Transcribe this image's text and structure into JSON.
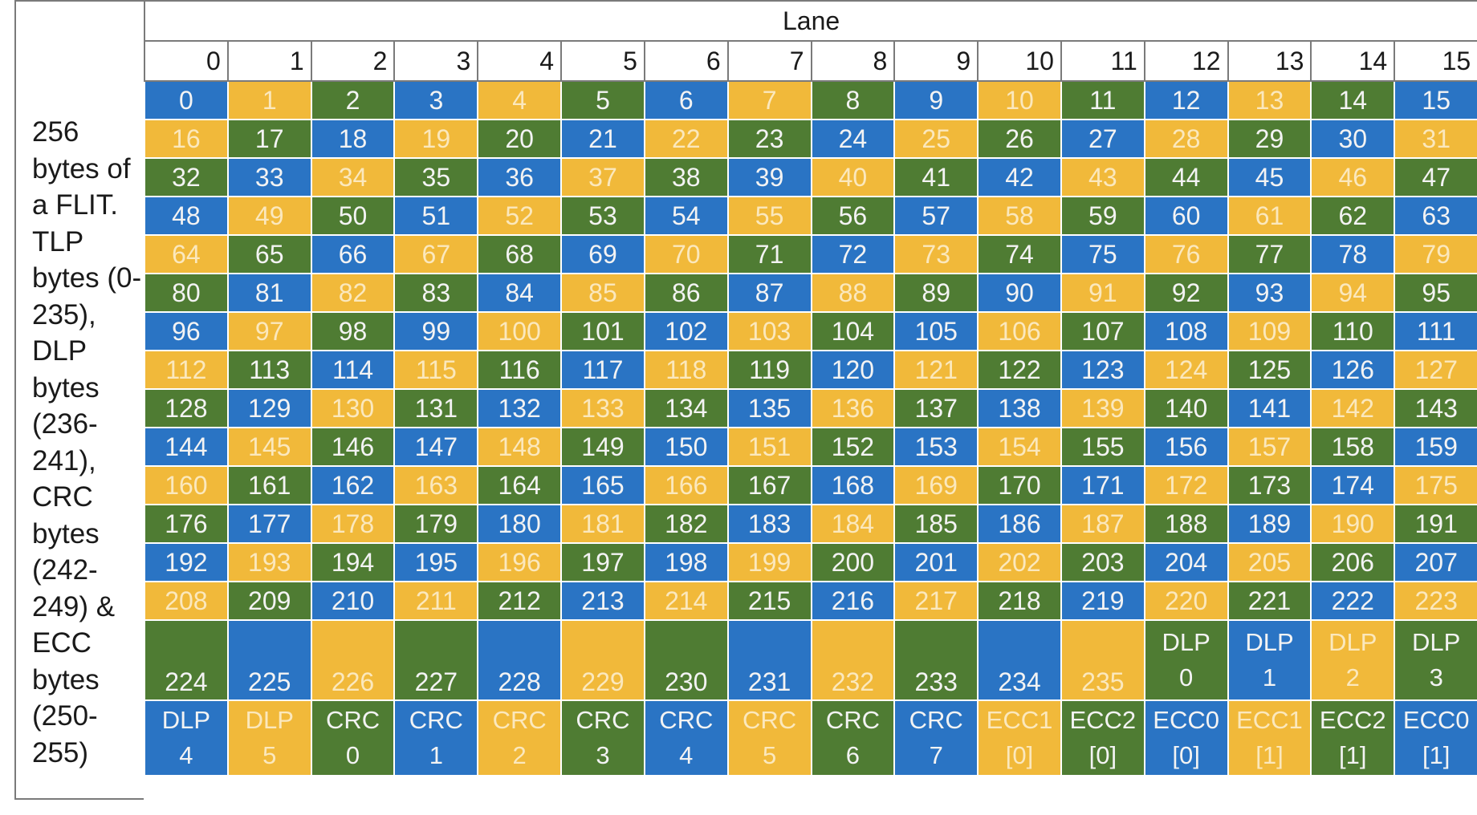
{
  "side_label": "256 bytes of a FLIT. TLP bytes (0-235), DLP bytes (236-241), CRC bytes (242-249) & ECC bytes (250-255)",
  "lane_header": "Lane",
  "lanes": [
    "0",
    "1",
    "2",
    "3",
    "4",
    "5",
    "6",
    "7",
    "8",
    "9",
    "10",
    "11",
    "12",
    "13",
    "14",
    "15"
  ],
  "colors": {
    "blue": "#2a74c4",
    "yellow": "#f1b93a",
    "green": "#4f7c33"
  },
  "rows": [
    [
      "0",
      "1",
      "2",
      "3",
      "4",
      "5",
      "6",
      "7",
      "8",
      "9",
      "10",
      "11",
      "12",
      "13",
      "14",
      "15"
    ],
    [
      "16",
      "17",
      "18",
      "19",
      "20",
      "21",
      "22",
      "23",
      "24",
      "25",
      "26",
      "27",
      "28",
      "29",
      "30",
      "31"
    ],
    [
      "32",
      "33",
      "34",
      "35",
      "36",
      "37",
      "38",
      "39",
      "40",
      "41",
      "42",
      "43",
      "44",
      "45",
      "46",
      "47"
    ],
    [
      "48",
      "49",
      "50",
      "51",
      "52",
      "53",
      "54",
      "55",
      "56",
      "57",
      "58",
      "59",
      "60",
      "61",
      "62",
      "63"
    ],
    [
      "64",
      "65",
      "66",
      "67",
      "68",
      "69",
      "70",
      "71",
      "72",
      "73",
      "74",
      "75",
      "76",
      "77",
      "78",
      "79"
    ],
    [
      "80",
      "81",
      "82",
      "83",
      "84",
      "85",
      "86",
      "87",
      "88",
      "89",
      "90",
      "91",
      "92",
      "93",
      "94",
      "95"
    ],
    [
      "96",
      "97",
      "98",
      "99",
      "100",
      "101",
      "102",
      "103",
      "104",
      "105",
      "106",
      "107",
      "108",
      "109",
      "110",
      "111"
    ],
    [
      "112",
      "113",
      "114",
      "115",
      "116",
      "117",
      "118",
      "119",
      "120",
      "121",
      "122",
      "123",
      "124",
      "125",
      "126",
      "127"
    ],
    [
      "128",
      "129",
      "130",
      "131",
      "132",
      "133",
      "134",
      "135",
      "136",
      "137",
      "138",
      "139",
      "140",
      "141",
      "142",
      "143"
    ],
    [
      "144",
      "145",
      "146",
      "147",
      "148",
      "149",
      "150",
      "151",
      "152",
      "153",
      "154",
      "155",
      "156",
      "157",
      "158",
      "159"
    ],
    [
      "160",
      "161",
      "162",
      "163",
      "164",
      "165",
      "166",
      "167",
      "168",
      "169",
      "170",
      "171",
      "172",
      "173",
      "174",
      "175"
    ],
    [
      "176",
      "177",
      "178",
      "179",
      "180",
      "181",
      "182",
      "183",
      "184",
      "185",
      "186",
      "187",
      "188",
      "189",
      "190",
      "191"
    ],
    [
      "192",
      "193",
      "194",
      "195",
      "196",
      "197",
      "198",
      "199",
      "200",
      "201",
      "202",
      "203",
      "204",
      "205",
      "206",
      "207"
    ],
    [
      "208",
      "209",
      "210",
      "211",
      "212",
      "213",
      "214",
      "215",
      "216",
      "217",
      "218",
      "219",
      "220",
      "221",
      "222",
      "223"
    ]
  ],
  "row_colors": [
    [
      "b",
      "y",
      "g",
      "b",
      "y",
      "g",
      "b",
      "y",
      "g",
      "b",
      "y",
      "g",
      "b",
      "y",
      "g",
      "b"
    ],
    [
      "y",
      "g",
      "b",
      "y",
      "g",
      "b",
      "y",
      "g",
      "b",
      "y",
      "g",
      "b",
      "y",
      "g",
      "b",
      "y"
    ],
    [
      "g",
      "b",
      "y",
      "g",
      "b",
      "y",
      "g",
      "b",
      "y",
      "g",
      "b",
      "y",
      "g",
      "b",
      "y",
      "g"
    ],
    [
      "b",
      "y",
      "g",
      "b",
      "y",
      "g",
      "b",
      "y",
      "g",
      "b",
      "y",
      "g",
      "b",
      "y",
      "g",
      "b"
    ],
    [
      "y",
      "g",
      "b",
      "y",
      "g",
      "b",
      "y",
      "g",
      "b",
      "y",
      "g",
      "b",
      "y",
      "g",
      "b",
      "y"
    ],
    [
      "g",
      "b",
      "y",
      "g",
      "b",
      "y",
      "g",
      "b",
      "y",
      "g",
      "b",
      "y",
      "g",
      "b",
      "y",
      "g"
    ],
    [
      "b",
      "y",
      "g",
      "b",
      "y",
      "g",
      "b",
      "y",
      "g",
      "b",
      "y",
      "g",
      "b",
      "y",
      "g",
      "b"
    ],
    [
      "y",
      "g",
      "b",
      "y",
      "g",
      "b",
      "y",
      "g",
      "b",
      "y",
      "g",
      "b",
      "y",
      "g",
      "b",
      "y"
    ],
    [
      "g",
      "b",
      "y",
      "g",
      "b",
      "y",
      "g",
      "b",
      "y",
      "g",
      "b",
      "y",
      "g",
      "b",
      "y",
      "g"
    ],
    [
      "b",
      "y",
      "g",
      "b",
      "y",
      "g",
      "b",
      "y",
      "g",
      "b",
      "y",
      "g",
      "b",
      "y",
      "g",
      "b"
    ],
    [
      "y",
      "g",
      "b",
      "y",
      "g",
      "b",
      "y",
      "g",
      "b",
      "y",
      "g",
      "b",
      "y",
      "g",
      "b",
      "y"
    ],
    [
      "g",
      "b",
      "y",
      "g",
      "b",
      "y",
      "g",
      "b",
      "y",
      "g",
      "b",
      "y",
      "g",
      "b",
      "y",
      "g"
    ],
    [
      "b",
      "y",
      "g",
      "b",
      "y",
      "g",
      "b",
      "y",
      "g",
      "b",
      "y",
      "g",
      "b",
      "y",
      "g",
      "b"
    ],
    [
      "y",
      "g",
      "b",
      "y",
      "g",
      "b",
      "y",
      "g",
      "b",
      "y",
      "g",
      "b",
      "y",
      "g",
      "b",
      "y"
    ]
  ],
  "row14": [
    {
      "lines": [
        "224"
      ],
      "color": "g"
    },
    {
      "lines": [
        "225"
      ],
      "color": "b"
    },
    {
      "lines": [
        "226"
      ],
      "color": "y"
    },
    {
      "lines": [
        "227"
      ],
      "color": "g"
    },
    {
      "lines": [
        "228"
      ],
      "color": "b"
    },
    {
      "lines": [
        "229"
      ],
      "color": "y"
    },
    {
      "lines": [
        "230"
      ],
      "color": "g"
    },
    {
      "lines": [
        "231"
      ],
      "color": "b"
    },
    {
      "lines": [
        "232"
      ],
      "color": "y"
    },
    {
      "lines": [
        "233"
      ],
      "color": "g"
    },
    {
      "lines": [
        "234"
      ],
      "color": "b"
    },
    {
      "lines": [
        "235"
      ],
      "color": "y"
    },
    {
      "lines": [
        "DLP",
        "0"
      ],
      "color": "g"
    },
    {
      "lines": [
        "DLP",
        "1"
      ],
      "color": "b"
    },
    {
      "lines": [
        "DLP",
        "2"
      ],
      "color": "y"
    },
    {
      "lines": [
        "DLP",
        "3"
      ],
      "color": "g"
    }
  ],
  "row15": [
    {
      "lines": [
        "DLP",
        "4"
      ],
      "color": "b"
    },
    {
      "lines": [
        "DLP",
        "5"
      ],
      "color": "y"
    },
    {
      "lines": [
        "CRC",
        "0"
      ],
      "color": "g"
    },
    {
      "lines": [
        "CRC",
        "1"
      ],
      "color": "b"
    },
    {
      "lines": [
        "CRC",
        "2"
      ],
      "color": "y"
    },
    {
      "lines": [
        "CRC",
        "3"
      ],
      "color": "g"
    },
    {
      "lines": [
        "CRC",
        "4"
      ],
      "color": "b"
    },
    {
      "lines": [
        "CRC",
        "5"
      ],
      "color": "y"
    },
    {
      "lines": [
        "CRC",
        "6"
      ],
      "color": "g"
    },
    {
      "lines": [
        "CRC",
        "7"
      ],
      "color": "b"
    },
    {
      "lines": [
        "ECC1",
        "[0]"
      ],
      "color": "y"
    },
    {
      "lines": [
        "ECC2",
        "[0]"
      ],
      "color": "g"
    },
    {
      "lines": [
        "ECC0",
        "[0]"
      ],
      "color": "b"
    },
    {
      "lines": [
        "ECC1",
        "[1]"
      ],
      "color": "y"
    },
    {
      "lines": [
        "ECC2",
        "[1]"
      ],
      "color": "g"
    },
    {
      "lines": [
        "ECC0",
        "[1]"
      ],
      "color": "b"
    }
  ]
}
